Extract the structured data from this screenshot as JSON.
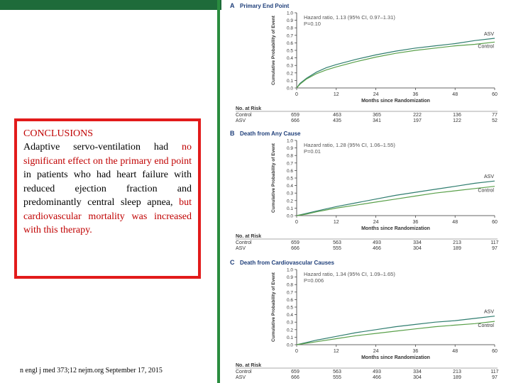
{
  "slide": {
    "conclusion_title": "CONCLUSIONS",
    "conclusion_part1": "Adaptive servo-ventilation had ",
    "conclusion_hl1": "no significant effect on the primary end point",
    "conclusion_part2": " in patients who had heart failure with reduced ejection fraction and predominantly central sleep apnea, ",
    "conclusion_hl2": "but cardiovascular mortality was increased with this therapy.",
    "citation": "n engl j med 373;12 nejm.org September 17, 2015",
    "highlight_color": "#c00000",
    "border_color": "#e21b1b"
  },
  "chart_data": [
    {
      "type": "line",
      "panel_letter": "A",
      "title": "Primary End Point",
      "annotation": "Hazard ratio, 1.13 (95% CI, 0.97–1.31)",
      "p_value": "P=0.10",
      "xlabel": "Months since Randomization",
      "ylabel": "Cumulative Probability of Event",
      "xlim": [
        0,
        60
      ],
      "ylim": [
        0,
        1.0
      ],
      "xticks": [
        "0",
        "12",
        "24",
        "36",
        "48",
        "60"
      ],
      "yticks": [
        "0.0",
        "0.1",
        "0.2",
        "0.3",
        "0.4",
        "0.5",
        "0.6",
        "0.7",
        "0.8",
        "0.9",
        "1.0"
      ],
      "series": [
        {
          "name": "ASV",
          "color": "#2f7d6f",
          "x": [
            0,
            1,
            3,
            6,
            9,
            12,
            18,
            24,
            30,
            36,
            42,
            48,
            54,
            60
          ],
          "values": [
            0,
            0.06,
            0.13,
            0.21,
            0.27,
            0.31,
            0.38,
            0.44,
            0.49,
            0.53,
            0.56,
            0.59,
            0.63,
            0.66
          ]
        },
        {
          "name": "Control",
          "color": "#5aa04a",
          "x": [
            0,
            1,
            3,
            6,
            9,
            12,
            18,
            24,
            30,
            36,
            42,
            48,
            54,
            60
          ],
          "values": [
            0,
            0.05,
            0.12,
            0.19,
            0.24,
            0.28,
            0.35,
            0.41,
            0.46,
            0.5,
            0.53,
            0.56,
            0.58,
            0.61
          ]
        }
      ],
      "risk_table": {
        "header": "No. at Risk",
        "rows": [
          {
            "label": "Control",
            "values": [
              "659",
              "463",
              "365",
              "222",
              "136",
              "77"
            ]
          },
          {
            "label": "ASV",
            "values": [
              "666",
              "435",
              "341",
              "197",
              "122",
              "52"
            ]
          }
        ]
      }
    },
    {
      "type": "line",
      "panel_letter": "B",
      "title": "Death from Any Cause",
      "annotation": "Hazard ratio, 1.28 (95% CI, 1.06–1.55)",
      "p_value": "P=0.01",
      "xlabel": "Months since Randomization",
      "ylabel": "Cumulative Probability of Event",
      "xlim": [
        0,
        60
      ],
      "ylim": [
        0,
        1.0
      ],
      "xticks": [
        "0",
        "12",
        "24",
        "36",
        "48",
        "60"
      ],
      "yticks": [
        "0.0",
        "0.1",
        "0.2",
        "0.3",
        "0.4",
        "0.5",
        "0.6",
        "0.7",
        "0.8",
        "0.9",
        "1.0"
      ],
      "series": [
        {
          "name": "ASV",
          "color": "#2f7d6f",
          "x": [
            0,
            3,
            6,
            12,
            18,
            24,
            30,
            36,
            42,
            48,
            54,
            60
          ],
          "values": [
            0,
            0.03,
            0.06,
            0.12,
            0.17,
            0.22,
            0.27,
            0.31,
            0.35,
            0.39,
            0.43,
            0.46
          ]
        },
        {
          "name": "Control",
          "color": "#5aa04a",
          "x": [
            0,
            3,
            6,
            12,
            18,
            24,
            30,
            36,
            42,
            48,
            54,
            60
          ],
          "values": [
            0,
            0.02,
            0.05,
            0.1,
            0.14,
            0.18,
            0.22,
            0.26,
            0.3,
            0.33,
            0.36,
            0.39
          ]
        }
      ],
      "risk_table": {
        "header": "No. at Risk",
        "rows": [
          {
            "label": "Control",
            "values": [
              "659",
              "563",
              "493",
              "334",
              "213",
              "117"
            ]
          },
          {
            "label": "ASV",
            "values": [
              "666",
              "555",
              "466",
              "304",
              "189",
              "97"
            ]
          }
        ]
      }
    },
    {
      "type": "line",
      "panel_letter": "C",
      "title": "Death from Cardiovascular Causes",
      "annotation": "Hazard ratio, 1.34 (95% CI, 1.09–1.65)",
      "p_value": "P=0.006",
      "xlabel": "Months since Randomization",
      "ylabel": "Cumulative Probability of Event",
      "xlim": [
        0,
        60
      ],
      "ylim": [
        0,
        1.0
      ],
      "xticks": [
        "0",
        "12",
        "24",
        "36",
        "48",
        "60"
      ],
      "yticks": [
        "0.0",
        "0.1",
        "0.2",
        "0.3",
        "0.4",
        "0.5",
        "0.6",
        "0.7",
        "0.8",
        "0.9",
        "1.0"
      ],
      "series": [
        {
          "name": "ASV",
          "color": "#2f7d6f",
          "x": [
            0,
            3,
            6,
            12,
            18,
            24,
            30,
            36,
            42,
            48,
            54,
            60
          ],
          "values": [
            0,
            0.03,
            0.06,
            0.11,
            0.16,
            0.2,
            0.24,
            0.27,
            0.3,
            0.32,
            0.35,
            0.38
          ]
        },
        {
          "name": "Control",
          "color": "#5aa04a",
          "x": [
            0,
            3,
            6,
            12,
            18,
            24,
            30,
            36,
            42,
            48,
            54,
            60
          ],
          "values": [
            0,
            0.02,
            0.04,
            0.08,
            0.12,
            0.15,
            0.18,
            0.21,
            0.24,
            0.26,
            0.28,
            0.31
          ]
        }
      ],
      "risk_table": {
        "header": "No. at Risk",
        "rows": [
          {
            "label": "Control",
            "values": [
              "659",
              "563",
              "493",
              "334",
              "213",
              "117"
            ]
          },
          {
            "label": "ASV",
            "values": [
              "666",
              "555",
              "466",
              "304",
              "189",
              "97"
            ]
          }
        ]
      }
    }
  ]
}
